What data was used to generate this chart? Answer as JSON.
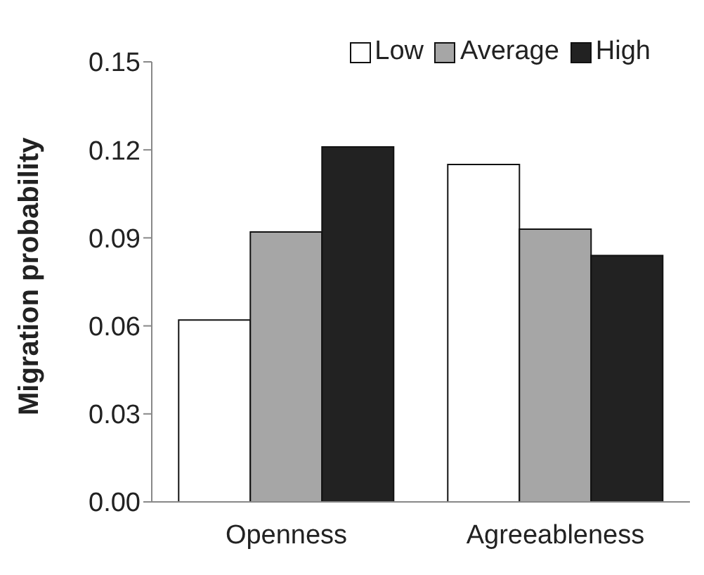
{
  "chart_data": {
    "type": "bar",
    "ylabel": "Migration probability",
    "categories": [
      "Openness",
      "Agreeableness"
    ],
    "series": [
      {
        "name": "Low",
        "color": "#ffffff",
        "values": [
          0.062,
          0.115
        ]
      },
      {
        "name": "Average",
        "color": "#a6a6a6",
        "values": [
          0.092,
          0.093
        ]
      },
      {
        "name": "High",
        "color": "#222222",
        "values": [
          0.121,
          0.084
        ]
      }
    ],
    "ylim": [
      0,
      0.15
    ],
    "yticks": [
      {
        "value": 0,
        "label": "0.00"
      },
      {
        "value": 0.03,
        "label": "0.03"
      },
      {
        "value": 0.06,
        "label": "0.06"
      },
      {
        "value": 0.09,
        "label": "0.09"
      },
      {
        "value": 0.12,
        "label": "0.12"
      },
      {
        "value": 0.15,
        "label": "0.15"
      }
    ],
    "grid": false,
    "legend": "top right"
  }
}
